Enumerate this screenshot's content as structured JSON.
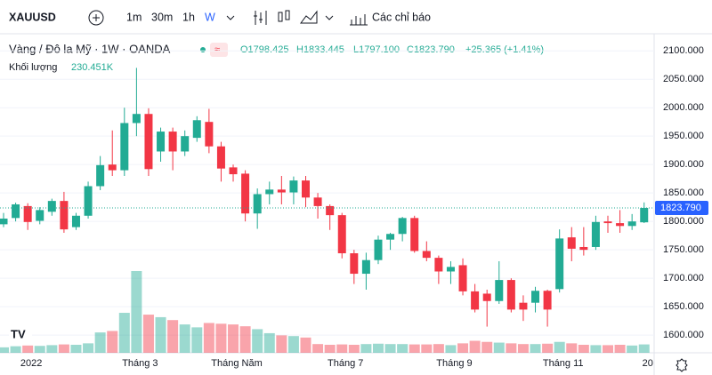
{
  "toolbar": {
    "symbol": "XAUUSD",
    "intervals": [
      "1m",
      "30m",
      "1h",
      "W"
    ],
    "indicators": "Các chỉ báo"
  },
  "legend": {
    "title": "Vàng / Đô la Mỹ · 1W · OANDA",
    "open": "O1798.425",
    "high": "H1833.445",
    "low": "L1797.100",
    "close": "C1823.790",
    "change": "+25.365 (+1.41%)",
    "volume_label": "Khối lượng",
    "volume_value": "230.451K"
  },
  "chart_data": {
    "type": "candlestick",
    "categories": [
      null,
      null,
      "2022",
      null,
      null,
      null,
      null,
      null,
      null,
      null,
      null,
      "Tháng 3",
      null,
      null,
      null,
      null,
      null,
      null,
      null,
      "Tháng Năm",
      null,
      null,
      null,
      null,
      null,
      null,
      null,
      null,
      "Tháng 7",
      null,
      null,
      null,
      null,
      null,
      null,
      null,
      null,
      "Tháng 9",
      null,
      null,
      null,
      null,
      null,
      null,
      null,
      null,
      "Tháng 11",
      null,
      null,
      null,
      null,
      null,
      null,
      "20"
    ],
    "up_color": "#22ab94",
    "down_color": "#f23645",
    "open": [
      1795,
      1806,
      1827,
      1801,
      1817,
      1836,
      1790,
      1810,
      1862,
      1900,
      1890,
      1973,
      1989,
      1923,
      1958,
      1923,
      1947,
      1975,
      1932,
      1895,
      1884,
      1814,
      1848,
      1856,
      1851,
      1872,
      1842,
      1827,
      1811,
      1744,
      1708,
      1732,
      1768,
      1778,
      1806,
      1748,
      1736,
      1712,
      1723,
      1677,
      1673,
      1660,
      1697,
      1657,
      1657,
      1678,
      1681,
      1772,
      1755,
      1755,
      1800,
      1797,
      1792,
      1798.425
    ],
    "high": [
      1815,
      1833,
      1832,
      1825,
      1840,
      1852,
      1815,
      1870,
      1915,
      1960,
      2000,
      2070,
      1999,
      1965,
      1965,
      1960,
      1985,
      1998,
      1940,
      1900,
      1890,
      1858,
      1870,
      1880,
      1879,
      1880,
      1850,
      1830,
      1815,
      1750,
      1745,
      1775,
      1780,
      1808,
      1810,
      1765,
      1740,
      1730,
      1735,
      1690,
      1680,
      1730,
      1700,
      1670,
      1685,
      1680,
      1786,
      1790,
      1790,
      1810,
      1810,
      1820,
      1813,
      1833.445
    ],
    "low": [
      1790,
      1800,
      1785,
      1795,
      1810,
      1780,
      1785,
      1805,
      1855,
      1880,
      1880,
      1950,
      1880,
      1905,
      1890,
      1915,
      1940,
      1920,
      1870,
      1870,
      1800,
      1787,
      1830,
      1830,
      1830,
      1825,
      1805,
      1785,
      1735,
      1690,
      1680,
      1725,
      1750,
      1765,
      1745,
      1730,
      1690,
      1690,
      1670,
      1640,
      1615,
      1655,
      1640,
      1625,
      1640,
      1615,
      1675,
      1730,
      1740,
      1750,
      1780,
      1780,
      1785,
      1797.1
    ],
    "close": [
      1805,
      1830,
      1799,
      1820,
      1836,
      1786,
      1810,
      1862,
      1899,
      1890,
      1973,
      1989,
      1892,
      1958,
      1923,
      1950,
      1978,
      1932,
      1893,
      1883,
      1814,
      1848,
      1856,
      1851,
      1872,
      1842,
      1827,
      1811,
      1744,
      1708,
      1732,
      1768,
      1778,
      1806,
      1748,
      1736,
      1712,
      1720,
      1677,
      1645,
      1660,
      1697,
      1645,
      1645,
      1678,
      1645,
      1770,
      1752,
      1750,
      1799,
      1797,
      1792,
      1800,
      1823.79
    ],
    "volume": [
      150,
      180,
      200,
      190,
      210,
      230,
      220,
      260,
      560,
      600,
      1100,
      2250,
      1050,
      980,
      900,
      780,
      700,
      820,
      800,
      780,
      730,
      650,
      540,
      480,
      460,
      420,
      240,
      220,
      230,
      220,
      240,
      250,
      240,
      240,
      230,
      230,
      240,
      210,
      260,
      330,
      300,
      280,
      260,
      240,
      240,
      250,
      300,
      260,
      220,
      210,
      210,
      220,
      200,
      230.451
    ],
    "ylim": [
      1569,
      2130
    ],
    "yticks": [
      {
        "value": 1600,
        "label": "1600.000"
      },
      {
        "value": 1650,
        "label": "1650.000"
      },
      {
        "value": 1700,
        "label": "1700.000"
      },
      {
        "value": 1750,
        "label": "1750.000"
      },
      {
        "value": 1800,
        "label": "1800.000"
      },
      {
        "value": 1850,
        "label": "1850.000"
      },
      {
        "value": 1900,
        "label": "1900.000"
      },
      {
        "value": 1950,
        "label": "1950.000"
      },
      {
        "value": 2000,
        "label": "2000.000"
      },
      {
        "value": 2050,
        "label": "2050.000"
      },
      {
        "value": 2100,
        "label": "2100.000"
      }
    ],
    "price_line": {
      "value": 1823.79,
      "label": "1823.790",
      "color": "#2962ff"
    }
  }
}
